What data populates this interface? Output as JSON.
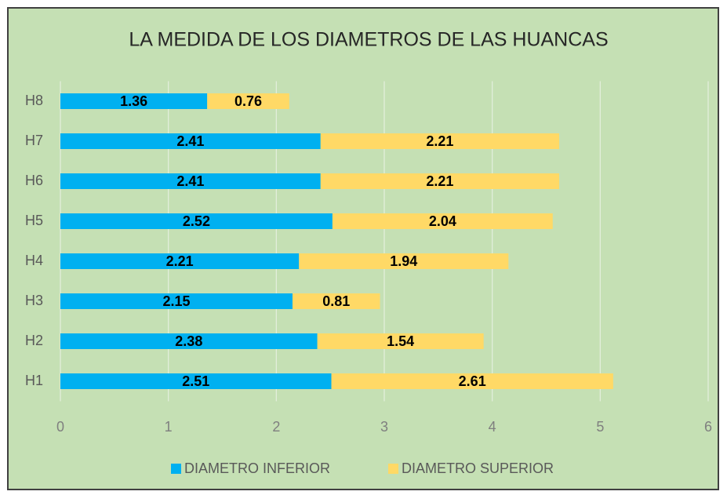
{
  "chart_data": {
    "type": "stacked_bar_horizontal",
    "title": "LA MEDIDA DE LOS DIAMETROS DE LAS HUANCAS",
    "categories": [
      "H1",
      "H2",
      "H3",
      "H4",
      "H5",
      "H6",
      "H7",
      "H8"
    ],
    "series": [
      {
        "name": "DIAMETRO INFERIOR",
        "color": "#00b0f0",
        "values": [
          2.51,
          2.38,
          2.15,
          2.21,
          2.52,
          2.41,
          2.41,
          1.36
        ]
      },
      {
        "name": "DIAMETRO SUPERIOR",
        "color": "#ffd966",
        "values": [
          2.61,
          1.54,
          0.81,
          1.94,
          2.04,
          2.21,
          2.21,
          0.76
        ]
      }
    ],
    "xlim": [
      0,
      6
    ],
    "xticks": [
      0,
      1,
      2,
      3,
      4,
      5,
      6
    ],
    "grid": true,
    "legend": "bottom"
  }
}
